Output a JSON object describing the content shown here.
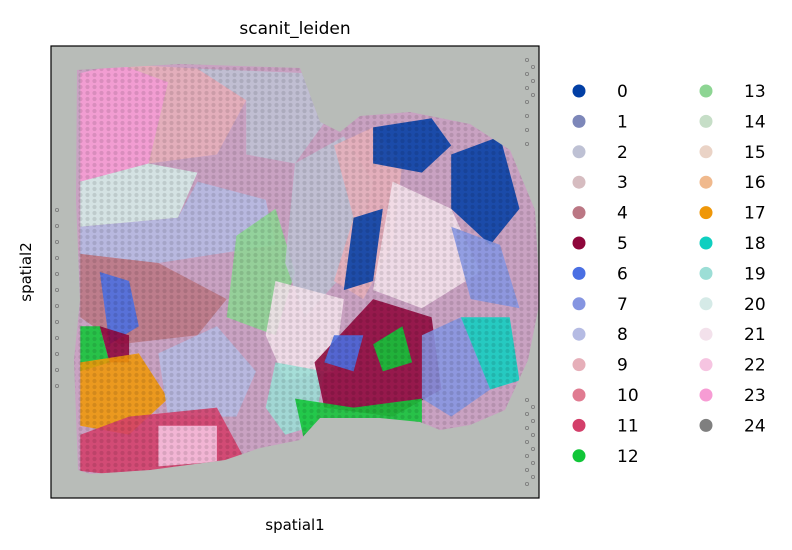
{
  "chart_data": {
    "type": "scatter",
    "title": "scanit_leiden",
    "xlabel": "spatial1",
    "ylabel": "spatial2",
    "grid": false,
    "ticks": false,
    "legend_position": "right",
    "legend_columns": 2,
    "background_image": "tissue-histology-section",
    "legend": [
      {
        "label": "0",
        "color": "#023fa5"
      },
      {
        "label": "1",
        "color": "#7d87b9"
      },
      {
        "label": "2",
        "color": "#bec1d4"
      },
      {
        "label": "3",
        "color": "#d6bcc0"
      },
      {
        "label": "4",
        "color": "#bb7784"
      },
      {
        "label": "5",
        "color": "#8e063b"
      },
      {
        "label": "6",
        "color": "#4a6fe3"
      },
      {
        "label": "7",
        "color": "#8595e1"
      },
      {
        "label": "8",
        "color": "#b5bbe3"
      },
      {
        "label": "9",
        "color": "#e6afb9"
      },
      {
        "label": "10",
        "color": "#e07b91"
      },
      {
        "label": "11",
        "color": "#d33f6a"
      },
      {
        "label": "12",
        "color": "#11c638"
      },
      {
        "label": "13",
        "color": "#8dd593"
      },
      {
        "label": "14",
        "color": "#c6dec7"
      },
      {
        "label": "15",
        "color": "#ead3c6"
      },
      {
        "label": "16",
        "color": "#f0b98d"
      },
      {
        "label": "17",
        "color": "#ef9708"
      },
      {
        "label": "18",
        "color": "#0fcfc0"
      },
      {
        "label": "19",
        "color": "#9cded6"
      },
      {
        "label": "20",
        "color": "#d5eae7"
      },
      {
        "label": "21",
        "color": "#f3e1eb"
      },
      {
        "label": "22",
        "color": "#f6c4e1"
      },
      {
        "label": "23",
        "color": "#f79cd4"
      },
      {
        "label": "24",
        "color": "#7f7f7f"
      }
    ],
    "regions": [
      {
        "cluster": "23",
        "points": [
          [
            0.06,
            0.06
          ],
          [
            0.14,
            0.04
          ],
          [
            0.24,
            0.08
          ],
          [
            0.2,
            0.26
          ],
          [
            0.06,
            0.3
          ]
        ]
      },
      {
        "cluster": "9",
        "points": [
          [
            0.14,
            0.04
          ],
          [
            0.3,
            0.05
          ],
          [
            0.4,
            0.12
          ],
          [
            0.34,
            0.24
          ],
          [
            0.2,
            0.26
          ],
          [
            0.24,
            0.08
          ]
        ]
      },
      {
        "cluster": "2",
        "points": [
          [
            0.3,
            0.05
          ],
          [
            0.52,
            0.06
          ],
          [
            0.58,
            0.14
          ],
          [
            0.5,
            0.26
          ],
          [
            0.4,
            0.24
          ],
          [
            0.4,
            0.12
          ]
        ]
      },
      {
        "cluster": "20",
        "points": [
          [
            0.06,
            0.3
          ],
          [
            0.2,
            0.26
          ],
          [
            0.3,
            0.28
          ],
          [
            0.26,
            0.38
          ],
          [
            0.06,
            0.4
          ]
        ]
      },
      {
        "cluster": "8",
        "points": [
          [
            0.06,
            0.4
          ],
          [
            0.26,
            0.38
          ],
          [
            0.3,
            0.3
          ],
          [
            0.44,
            0.34
          ],
          [
            0.46,
            0.44
          ],
          [
            0.22,
            0.48
          ],
          [
            0.06,
            0.46
          ]
        ]
      },
      {
        "cluster": "13",
        "points": [
          [
            0.38,
            0.42
          ],
          [
            0.46,
            0.36
          ],
          [
            0.5,
            0.5
          ],
          [
            0.46,
            0.64
          ],
          [
            0.36,
            0.6
          ]
        ]
      },
      {
        "cluster": "4",
        "points": [
          [
            0.06,
            0.46
          ],
          [
            0.22,
            0.48
          ],
          [
            0.36,
            0.56
          ],
          [
            0.3,
            0.64
          ],
          [
            0.14,
            0.66
          ],
          [
            0.06,
            0.6
          ]
        ]
      },
      {
        "cluster": "6",
        "points": [
          [
            0.1,
            0.5
          ],
          [
            0.16,
            0.52
          ],
          [
            0.18,
            0.62
          ],
          [
            0.12,
            0.66
          ]
        ]
      },
      {
        "cluster": "12",
        "points": [
          [
            0.06,
            0.62
          ],
          [
            0.1,
            0.62
          ],
          [
            0.12,
            0.7
          ],
          [
            0.06,
            0.72
          ]
        ]
      },
      {
        "cluster": "5",
        "points": [
          [
            0.1,
            0.62
          ],
          [
            0.16,
            0.64
          ],
          [
            0.16,
            0.7
          ],
          [
            0.12,
            0.7
          ]
        ]
      },
      {
        "cluster": "17",
        "points": [
          [
            0.06,
            0.7
          ],
          [
            0.18,
            0.68
          ],
          [
            0.24,
            0.78
          ],
          [
            0.16,
            0.86
          ],
          [
            0.06,
            0.84
          ]
        ]
      },
      {
        "cluster": "8",
        "points": [
          [
            0.22,
            0.68
          ],
          [
            0.34,
            0.62
          ],
          [
            0.42,
            0.72
          ],
          [
            0.38,
            0.82
          ],
          [
            0.24,
            0.82
          ]
        ]
      },
      {
        "cluster": "11",
        "points": [
          [
            0.06,
            0.86
          ],
          [
            0.16,
            0.82
          ],
          [
            0.34,
            0.8
          ],
          [
            0.4,
            0.92
          ],
          [
            0.22,
            0.96
          ],
          [
            0.06,
            0.94
          ]
        ]
      },
      {
        "cluster": "22",
        "points": [
          [
            0.22,
            0.84
          ],
          [
            0.34,
            0.84
          ],
          [
            0.34,
            0.92
          ],
          [
            0.22,
            0.93
          ]
        ]
      },
      {
        "cluster": "2",
        "points": [
          [
            0.5,
            0.26
          ],
          [
            0.6,
            0.2
          ],
          [
            0.66,
            0.3
          ],
          [
            0.62,
            0.48
          ],
          [
            0.52,
            0.6
          ],
          [
            0.48,
            0.48
          ]
        ]
      },
      {
        "cluster": "21",
        "points": [
          [
            0.46,
            0.52
          ],
          [
            0.6,
            0.56
          ],
          [
            0.58,
            0.72
          ],
          [
            0.48,
            0.74
          ],
          [
            0.44,
            0.64
          ]
        ]
      },
      {
        "cluster": "19",
        "points": [
          [
            0.46,
            0.7
          ],
          [
            0.56,
            0.72
          ],
          [
            0.54,
            0.84
          ],
          [
            0.48,
            0.86
          ],
          [
            0.44,
            0.8
          ]
        ]
      },
      {
        "cluster": "9",
        "points": [
          [
            0.58,
            0.22
          ],
          [
            0.66,
            0.18
          ],
          [
            0.72,
            0.26
          ],
          [
            0.7,
            0.44
          ],
          [
            0.64,
            0.56
          ],
          [
            0.58,
            0.52
          ],
          [
            0.62,
            0.38
          ]
        ]
      },
      {
        "cluster": "0",
        "points": [
          [
            0.62,
            0.38
          ],
          [
            0.68,
            0.36
          ],
          [
            0.66,
            0.52
          ],
          [
            0.6,
            0.54
          ]
        ]
      },
      {
        "cluster": "0",
        "points": [
          [
            0.66,
            0.18
          ],
          [
            0.78,
            0.16
          ],
          [
            0.82,
            0.22
          ],
          [
            0.76,
            0.28
          ],
          [
            0.66,
            0.26
          ]
        ]
      },
      {
        "cluster": "0",
        "points": [
          [
            0.82,
            0.24
          ],
          [
            0.92,
            0.2
          ],
          [
            0.96,
            0.36
          ],
          [
            0.9,
            0.44
          ],
          [
            0.82,
            0.36
          ]
        ]
      },
      {
        "cluster": "21",
        "points": [
          [
            0.7,
            0.3
          ],
          [
            0.82,
            0.36
          ],
          [
            0.88,
            0.5
          ],
          [
            0.76,
            0.58
          ],
          [
            0.66,
            0.54
          ]
        ]
      },
      {
        "cluster": "7",
        "points": [
          [
            0.82,
            0.4
          ],
          [
            0.92,
            0.44
          ],
          [
            0.96,
            0.58
          ],
          [
            0.86,
            0.56
          ]
        ]
      },
      {
        "cluster": "5",
        "points": [
          [
            0.54,
            0.7
          ],
          [
            0.66,
            0.56
          ],
          [
            0.78,
            0.6
          ],
          [
            0.8,
            0.76
          ],
          [
            0.7,
            0.82
          ],
          [
            0.56,
            0.8
          ]
        ]
      },
      {
        "cluster": "12",
        "points": [
          [
            0.66,
            0.66
          ],
          [
            0.72,
            0.62
          ],
          [
            0.74,
            0.7
          ],
          [
            0.68,
            0.72
          ]
        ]
      },
      {
        "cluster": "6",
        "points": [
          [
            0.58,
            0.64
          ],
          [
            0.64,
            0.64
          ],
          [
            0.62,
            0.72
          ],
          [
            0.56,
            0.7
          ]
        ]
      },
      {
        "cluster": "12",
        "points": [
          [
            0.5,
            0.78
          ],
          [
            0.62,
            0.8
          ],
          [
            0.76,
            0.78
          ],
          [
            0.76,
            0.86
          ],
          [
            0.52,
            0.88
          ]
        ]
      },
      {
        "cluster": "7",
        "points": [
          [
            0.76,
            0.64
          ],
          [
            0.84,
            0.6
          ],
          [
            0.9,
            0.76
          ],
          [
            0.82,
            0.82
          ],
          [
            0.76,
            0.78
          ]
        ]
      },
      {
        "cluster": "18",
        "points": [
          [
            0.84,
            0.6
          ],
          [
            0.94,
            0.6
          ],
          [
            0.96,
            0.74
          ],
          [
            0.9,
            0.76
          ]
        ]
      }
    ]
  }
}
